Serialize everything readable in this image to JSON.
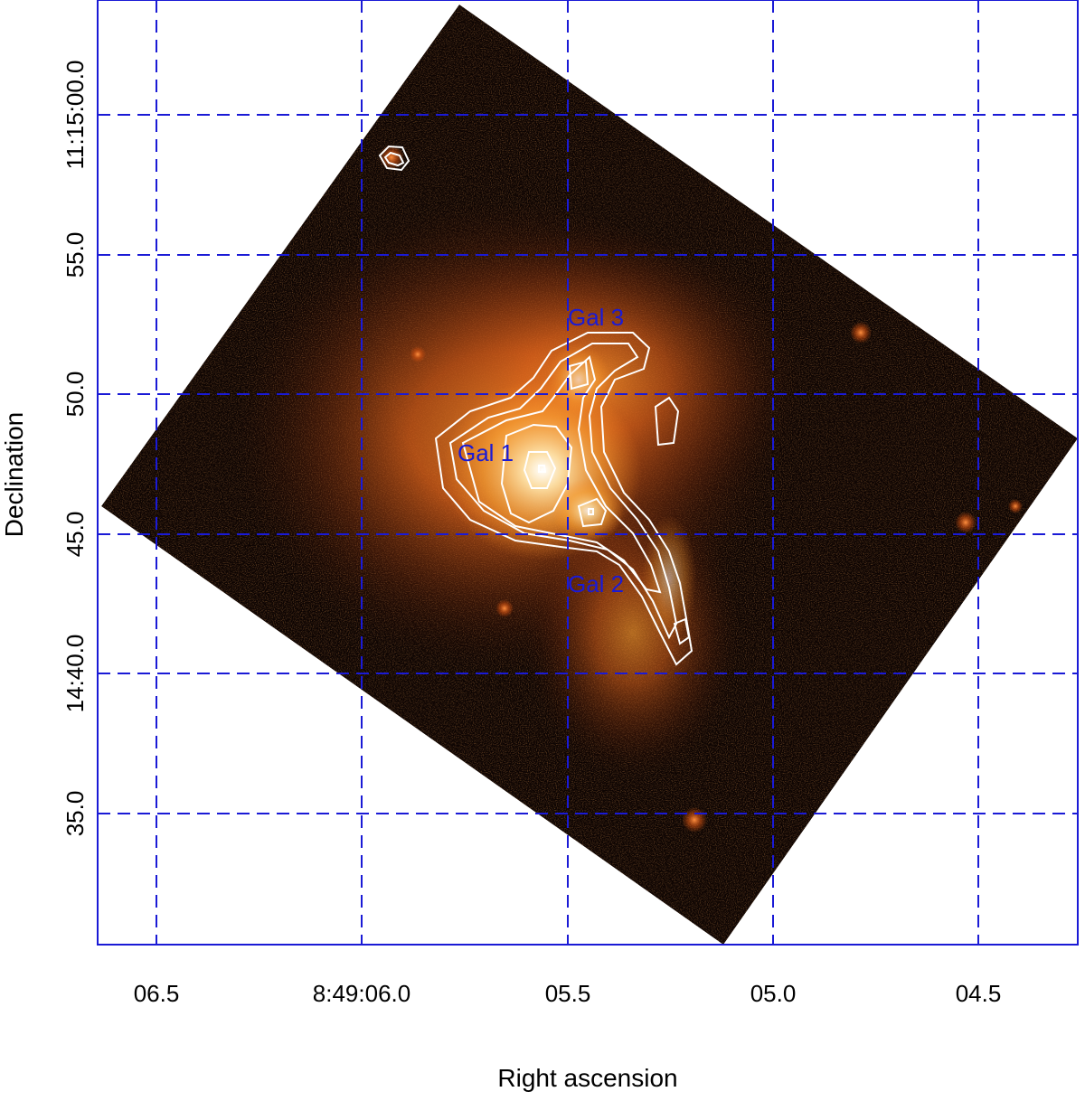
{
  "figure": {
    "xlabel": "Right ascension",
    "ylabel": "Declination",
    "x_ticks": [
      "06.5",
      "8:49:06.0",
      "05.5",
      "05.0",
      "04.5"
    ],
    "y_ticks": [
      "11:15:00.0",
      "55.0",
      "50.0",
      "14:40.0",
      "45.0",
      "35.0"
    ],
    "annotations": [
      "Gal 1",
      "Gal 2",
      "Gal 3"
    ],
    "grid": true,
    "grid_color": "#1a1ad6",
    "label_color": "#1a1ad6",
    "contour_color": "#ffffff",
    "image_colormap": "black-orange-white"
  }
}
